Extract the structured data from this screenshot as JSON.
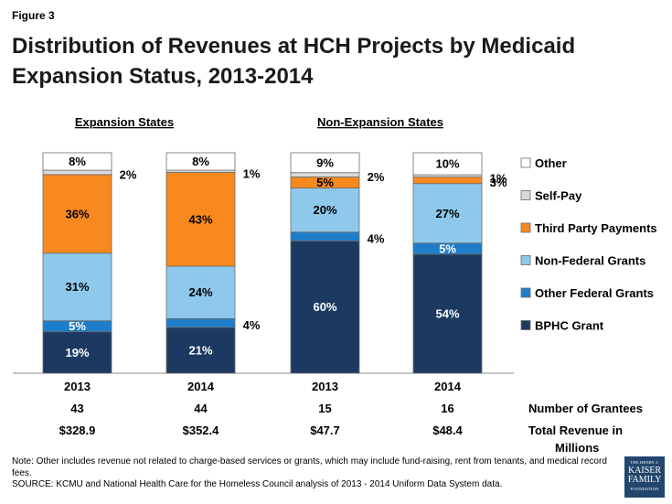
{
  "figure_label": "Figure 3",
  "title": "Distribution of Revenues at HCH Projects by Medicaid Expansion Status, 2013-2014",
  "notes": {
    "line1": "Note: Other includes revenue not related to charge-based services or grants, which may include fund-raising, rent from tenants, and medical record fees.",
    "line2": "SOURCE: KCMU and National Health Care for the Homeless Council analysis of 2013 - 2014 Uniform Data System data."
  },
  "logo": {
    "line1": "THE HENRY J.",
    "line2": "KAISER",
    "line3": "FAMILY",
    "line4": "FOUNDATION"
  },
  "chart_data": {
    "type": "bar",
    "stacked": true,
    "percent": true,
    "groups": [
      {
        "label": "Expansion States",
        "bars": [
          0,
          1
        ]
      },
      {
        "label": "Non-Expansion States",
        "bars": [
          2,
          3
        ]
      }
    ],
    "categories": [
      "2013",
      "2014",
      "2013",
      "2014"
    ],
    "series": [
      {
        "name": "BPHC Grant",
        "color": "#1c3a61",
        "values": [
          19,
          21,
          60,
          54
        ]
      },
      {
        "name": "Other Federal Grants",
        "color": "#1d7dc9",
        "values": [
          5,
          4,
          4,
          5
        ]
      },
      {
        "name": "Non-Federal Grants",
        "color": "#8ec9ec",
        "values": [
          31,
          24,
          20,
          27
        ]
      },
      {
        "name": "Third Party Payments",
        "color": "#f7891e",
        "values": [
          36,
          43,
          5,
          3
        ]
      },
      {
        "name": "Self-Pay",
        "color": "#d8d9db",
        "values": [
          2,
          1,
          2,
          1
        ]
      },
      {
        "name": "Other",
        "color": "#ffffff",
        "values": [
          8,
          8,
          9,
          10
        ]
      }
    ],
    "value_labels": [
      [
        "19%",
        "5%",
        "31%",
        "36%",
        "2%",
        "8%"
      ],
      [
        "21%",
        "4%",
        "24%",
        "43%",
        "1%",
        "8%"
      ],
      [
        "60%",
        "4%",
        "20%",
        "5%",
        "2%",
        "9%"
      ],
      [
        "54%",
        "5%",
        "27%",
        "3%",
        "1%",
        "10%"
      ]
    ],
    "legend_order": [
      "Other",
      "Self-Pay",
      "Third Party Payments",
      "Non-Federal Grants",
      "Other Federal Grants",
      "BPHC Grant"
    ],
    "legend_placement": "right",
    "rows": [
      {
        "label": "Number of Grantees",
        "values": [
          "43",
          "44",
          "15",
          "16"
        ]
      },
      {
        "label": "Total Revenue in Millions",
        "values": [
          "$328.9",
          "$352.4",
          "$47.7",
          "$48.4"
        ]
      }
    ],
    "ylim": [
      0,
      100
    ]
  }
}
